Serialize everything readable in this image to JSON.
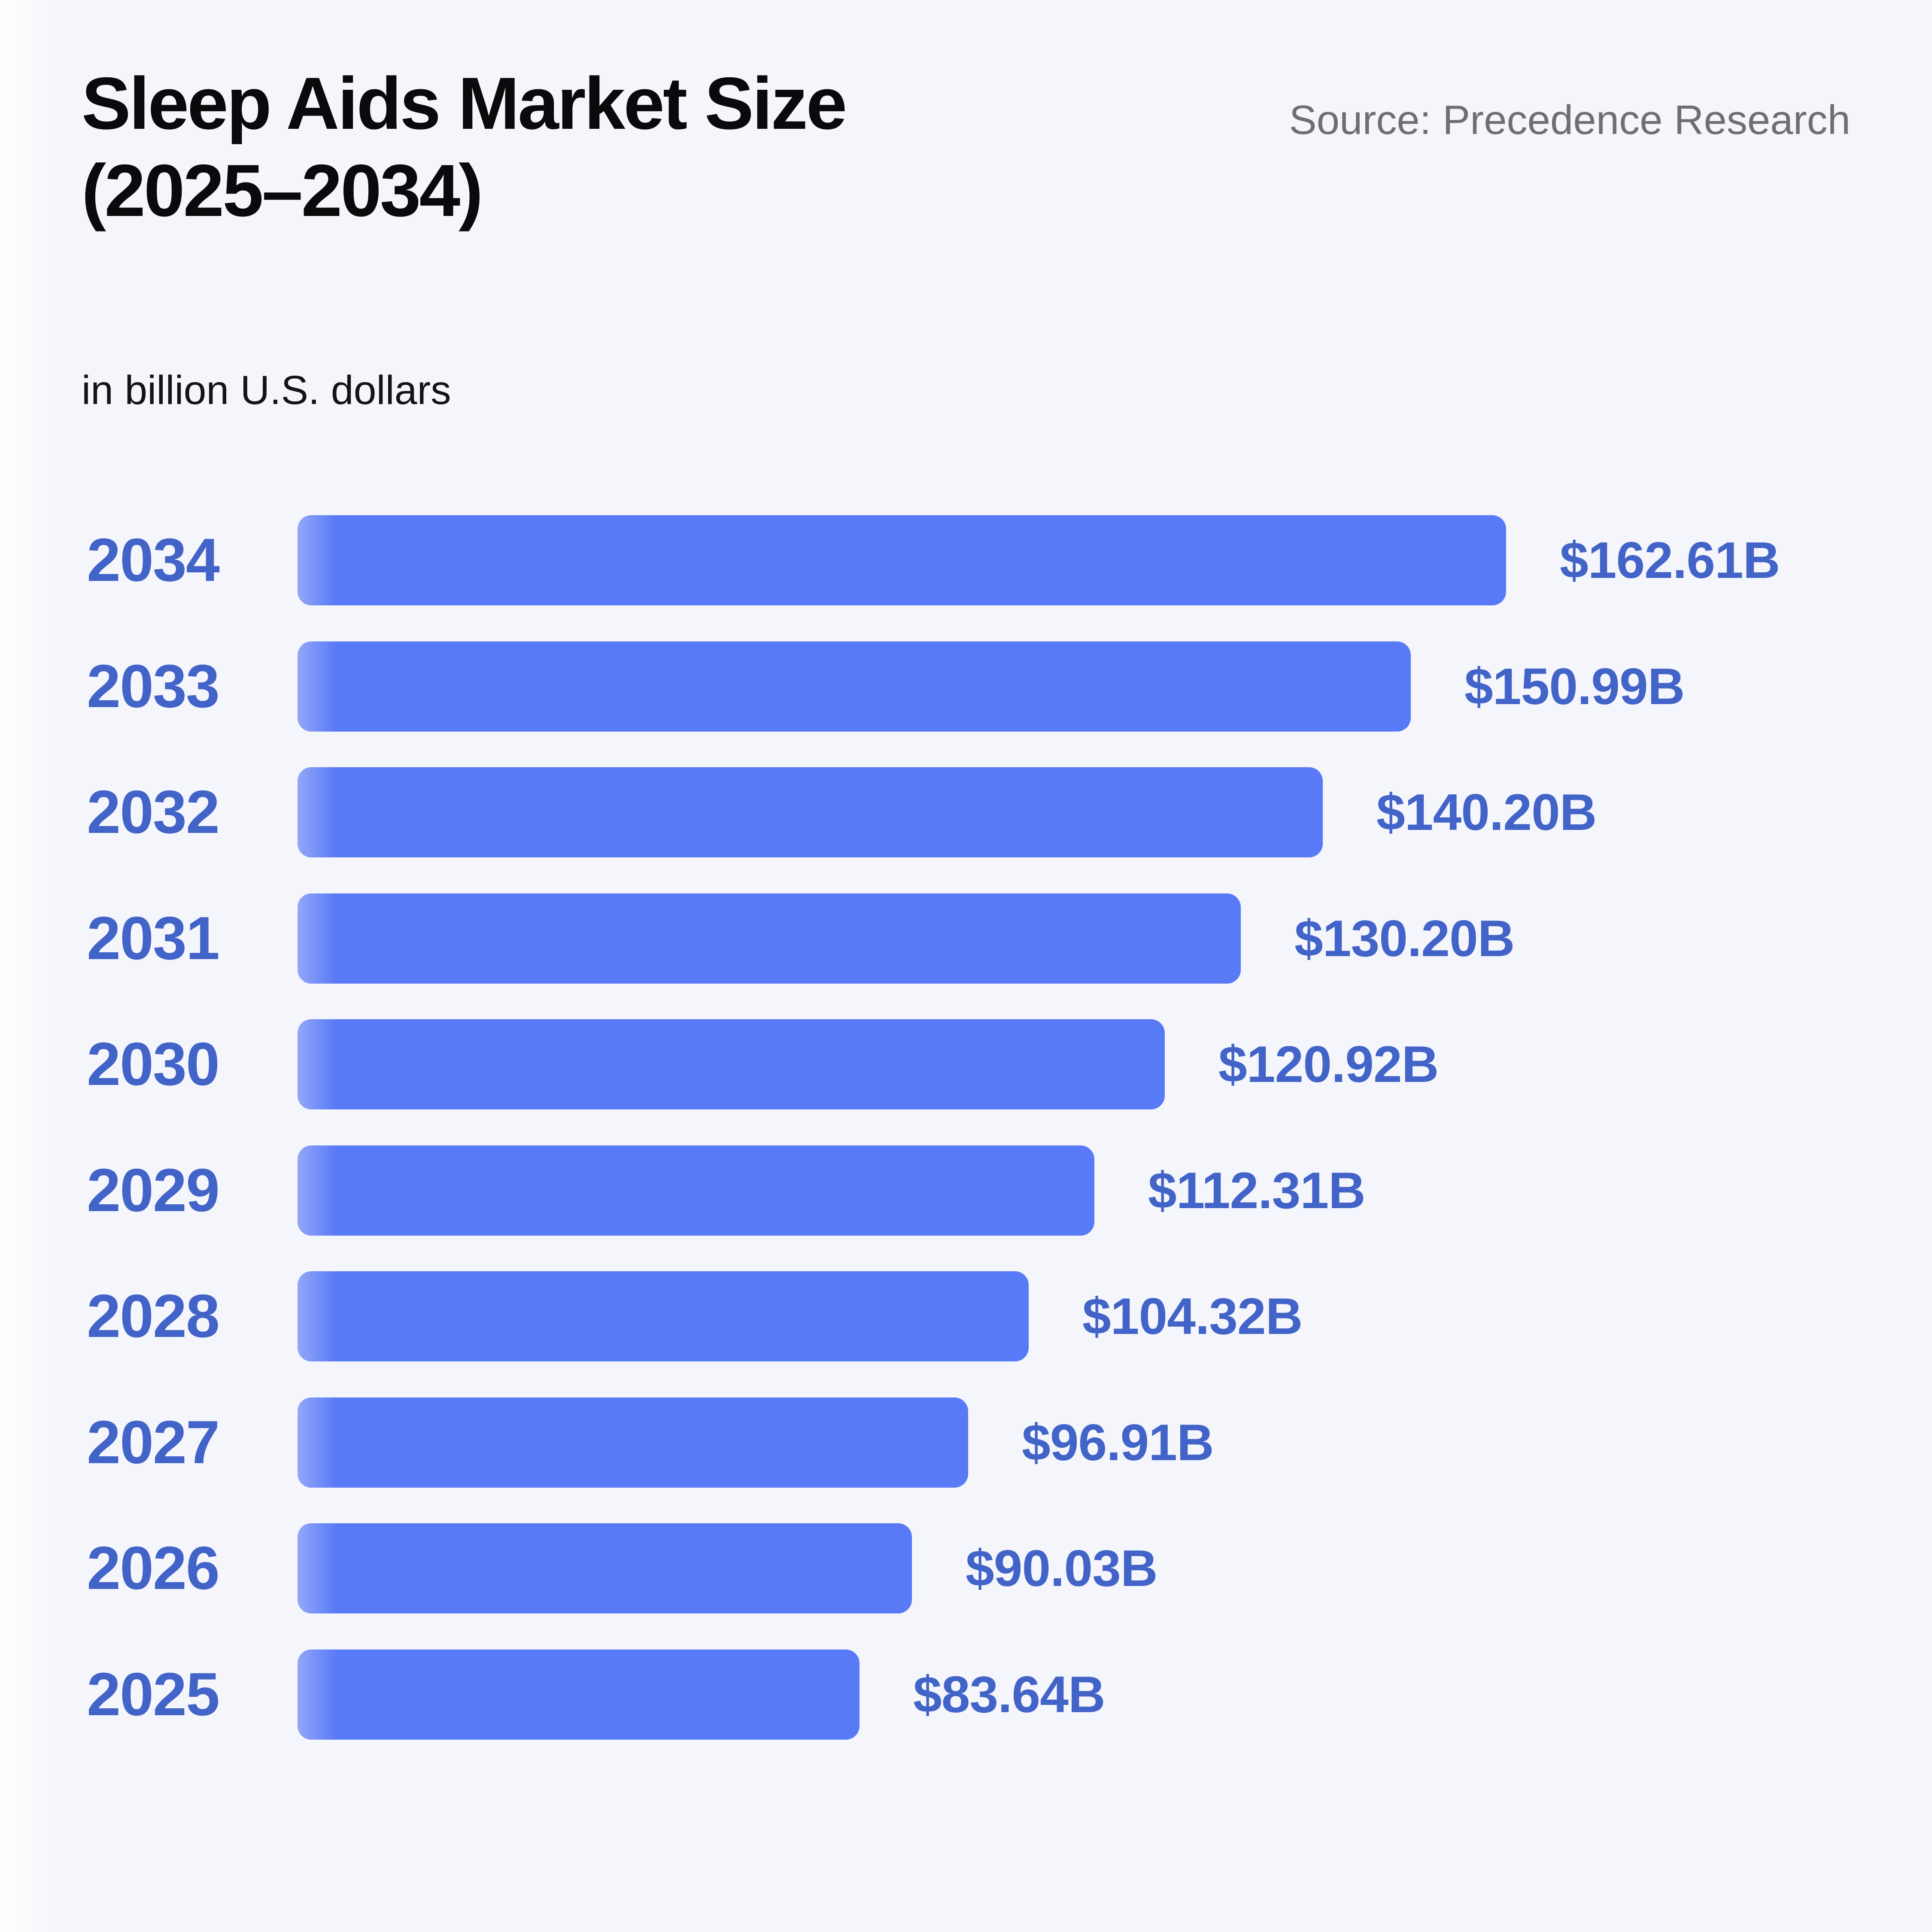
{
  "header": {
    "title_line1": "Sleep Aids Market Size",
    "title_line2": "(2025–2034)",
    "subtitle": "in billion U.S. dollars",
    "source": "Source: Precedence Research"
  },
  "colors": {
    "background": "#f5f6fb",
    "bar": "#587af6",
    "bar_edge_light": "#93a7f8",
    "label_blue": "#4263c8",
    "title": "#0a0a0c",
    "subtitle": "#141417",
    "source_gray": "#6e6e73"
  },
  "chart_data": {
    "type": "bar",
    "orientation": "horizontal",
    "title": "Sleep Aids Market Size (2025–2034)",
    "subtitle": "in billion U.S. dollars",
    "source": "Source: Precedence Research",
    "categories": [
      "2034",
      "2033",
      "2032",
      "2031",
      "2030",
      "2029",
      "2028",
      "2027",
      "2026",
      "2025"
    ],
    "values": [
      162.61,
      150.99,
      140.2,
      130.2,
      120.92,
      112.31,
      104.32,
      96.91,
      90.03,
      83.64
    ],
    "value_labels": [
      "$162.61B",
      "$150.99B",
      "$140.20B",
      "$130.20B",
      "$120.92B",
      "$112.31B",
      "$104.32B",
      "$96.91B",
      "$90.03B",
      "$83.64B"
    ],
    "xlim": [
      15,
      162.61
    ],
    "ylabel": "",
    "xlabel": "",
    "legend": false,
    "grid": false
  }
}
